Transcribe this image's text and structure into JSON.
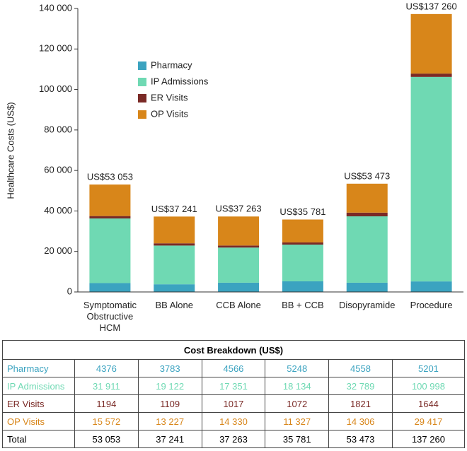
{
  "chart_data": {
    "type": "stacked-bar",
    "y_label": "Healthcare Costs (US$)",
    "categories": [
      "Symptomatic Obstructive HCM",
      "BB Alone",
      "CCB Alone",
      "BB + CCB",
      "Disopyramide",
      "Procedure"
    ],
    "series": [
      {
        "name": "Pharmacy",
        "color": "#3ba3c0",
        "values": [
          4376,
          3783,
          4566,
          5248,
          4558,
          5201
        ]
      },
      {
        "name": "IP Admissions",
        "color": "#6fd9b3",
        "values": [
          31911,
          19122,
          17351,
          18134,
          32789,
          100998
        ]
      },
      {
        "name": "ER Visits",
        "color": "#7a2a26",
        "values": [
          1194,
          1109,
          1017,
          1072,
          1821,
          1644
        ]
      },
      {
        "name": "OP Visits",
        "color": "#d8861a",
        "values": [
          15572,
          13227,
          14330,
          11327,
          14306,
          29417
        ]
      }
    ],
    "totals": {
      "values": [
        53053,
        37241,
        37263,
        35781,
        53473,
        137260
      ],
      "value_labels": [
        "US$53 053",
        "US$37 241",
        "US$37 263",
        "US$35 781",
        "US$53 473",
        "US$137 260"
      ]
    },
    "ylim": [
      0,
      140000
    ],
    "yticks": [
      0,
      {
        "value": 20000,
        "label": "20 000"
      },
      {
        "value": 40000,
        "label": "40 000"
      },
      {
        "value": 60000,
        "label": "60 000"
      },
      {
        "value": 80000,
        "label": "80 000"
      },
      {
        "value": 100000,
        "label": "100 000"
      },
      {
        "value": 120000,
        "label": "120 000"
      },
      {
        "value": 140000,
        "label": "140 000"
      }
    ],
    "legend": "upper left"
  },
  "table": {
    "title": "Cost Breakdown (US$)",
    "rows": [
      [
        "Pharmacy",
        "4376",
        "3783",
        "4566",
        "5248",
        "4558",
        "5201"
      ],
      [
        "IP Admissions",
        "31 911",
        "19 122",
        "17 351",
        "18 134",
        "32 789",
        "100 998"
      ],
      [
        "ER Visits",
        "1194",
        "1109",
        "1017",
        "1072",
        "1821",
        "1644"
      ],
      [
        "OP Visits",
        "15 572",
        "13 227",
        "14 330",
        "11 327",
        "14 306",
        "29 417"
      ],
      [
        "Total",
        "53 053",
        "37 241",
        "37 263",
        "35 781",
        "53 473",
        "137 260"
      ]
    ]
  }
}
